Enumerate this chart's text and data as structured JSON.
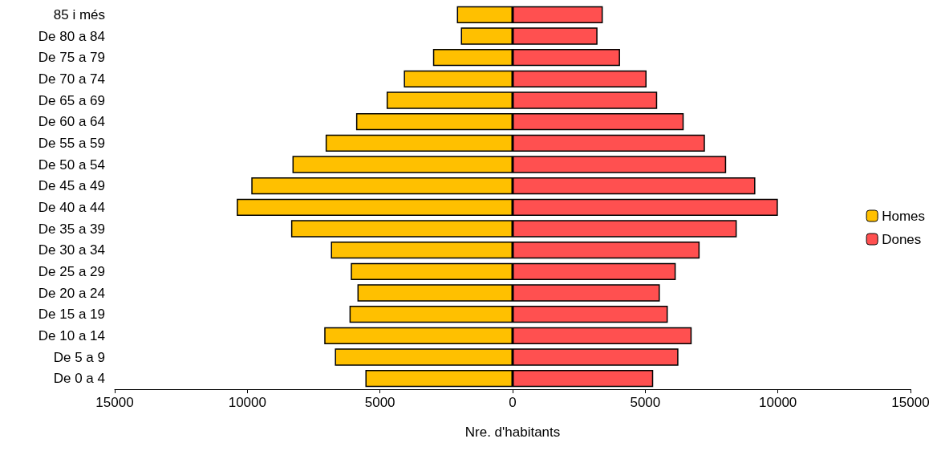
{
  "chart_data": {
    "type": "bar",
    "orientation": "horizontal",
    "stacked": true,
    "xlabel": "Nre. d'habitants",
    "categories": [
      "85 i més",
      "De 80 a 84",
      "De 75 a 79",
      "De 70 a 74",
      "De 65 a 69",
      "De 60 a 64",
      "De 55 a 59",
      "De 50 a 54",
      "De 45 a 49",
      "De 40 a 44",
      "De 35 a 39",
      "De 30 a 34",
      "De 25 a 29",
      "De 20 a 24",
      "De 15 a 19",
      "De 10 a 14",
      "De 5 a 9",
      "De 0 a 4"
    ],
    "series": [
      {
        "name": "Homes",
        "color": "#ffc000",
        "values": [
          -2100,
          -1950,
          -3000,
          -4100,
          -4750,
          -5900,
          -7050,
          -8300,
          -9850,
          -10400,
          -8350,
          -6850,
          -6100,
          -5850,
          -6150,
          -7100,
          -6700,
          -5550
        ]
      },
      {
        "name": "Dones",
        "color": "#ff5050",
        "values": [
          3400,
          3200,
          4050,
          5050,
          5450,
          6450,
          7250,
          8050,
          9150,
          10000,
          8450,
          7050,
          6150,
          5550,
          5850,
          6750,
          6250,
          5300
        ]
      }
    ],
    "xlim": [
      -15000,
      15000
    ],
    "xticks": [
      {
        "value": -15000,
        "label": "15000"
      },
      {
        "value": -10000,
        "label": "10000"
      },
      {
        "value": -5000,
        "label": "5000"
      },
      0,
      5000,
      10000,
      15000
    ],
    "grid": false,
    "legend": "right"
  }
}
